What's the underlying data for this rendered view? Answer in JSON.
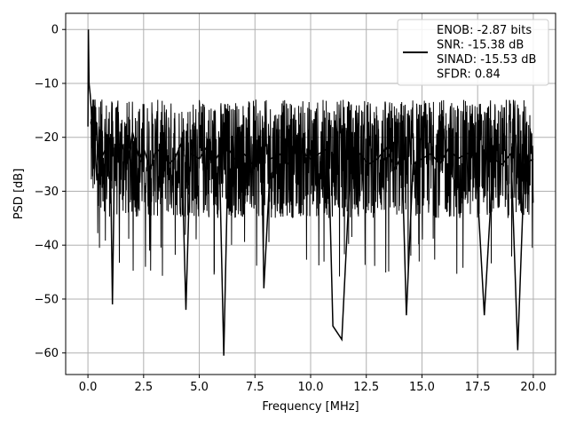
{
  "chart_data": {
    "type": "line",
    "xlabel": "Frequency [MHz]",
    "ylabel": "PSD [dB]",
    "xlim": [
      -1.0,
      21.0
    ],
    "ylim": [
      -64.0,
      3.0
    ],
    "xticks": [
      0.0,
      2.5,
      5.0,
      7.5,
      10.0,
      12.5,
      15.0,
      17.5,
      20.0
    ],
    "xtick_labels": [
      "0.0",
      "2.5",
      "5.0",
      "7.5",
      "10.0",
      "12.5",
      "15.0",
      "17.5",
      "20.0"
    ],
    "yticks": [
      0,
      -10,
      -20,
      -30,
      -40,
      -50,
      -60
    ],
    "ytick_labels": [
      "0",
      "−10",
      "−20",
      "−30",
      "−40",
      "−50",
      "−60"
    ],
    "grid": true,
    "legend_placement": "top-right",
    "legend_lines": [
      "ENOB: -2.87 bits",
      "SNR: -15.38 dB",
      "SINAD: -15.53 dB",
      "SFDR: 0.84"
    ],
    "line_color": "#000000",
    "series": [
      {
        "x": [
          0.0,
          0.02,
          0.05,
          0.1,
          0.15,
          0.2,
          0.3,
          0.4,
          0.5,
          0.6,
          0.8,
          1.0,
          1.1,
          1.2,
          1.5,
          1.8,
          2.0,
          2.3,
          2.5,
          2.8,
          3.0,
          3.3,
          3.6,
          3.9,
          4.2,
          4.4,
          4.6,
          5.0,
          5.3,
          5.6,
          5.9,
          6.1,
          6.3,
          6.6,
          7.0,
          7.4,
          7.8,
          7.9,
          8.2,
          8.6,
          9.0,
          9.4,
          10.0,
          10.4,
          10.8,
          11.0,
          11.4,
          11.8,
          12.2,
          12.6,
          13.0,
          13.4,
          13.8,
          14.1,
          14.3,
          14.6,
          15.0,
          15.4,
          15.8,
          16.2,
          16.6,
          17.0,
          17.4,
          17.8,
          18.2,
          18.6,
          19.0,
          19.3,
          19.6,
          20.0
        ],
        "y": [
          -18,
          0,
          -10,
          -12,
          -15,
          -22,
          -20,
          -28,
          -18,
          -24,
          -22,
          -20,
          -51,
          -22,
          -21,
          -25,
          -19,
          -24,
          -22,
          -26,
          -23,
          -22,
          -25,
          -24,
          -21,
          -52,
          -23,
          -24,
          -22,
          -25,
          -23,
          -60.5,
          -22,
          -24,
          -23,
          -25,
          -22,
          -48,
          -24,
          -23,
          -25,
          -22,
          -24,
          -23,
          -22,
          -55,
          -57.5,
          -24,
          -23,
          -25,
          -24,
          -22,
          -26,
          -23,
          -53,
          -25,
          -24,
          -23,
          -25,
          -22,
          -24,
          -23,
          -23,
          -53,
          -24,
          -25,
          -23,
          -59.5,
          -25,
          -24
        ]
      }
    ]
  }
}
